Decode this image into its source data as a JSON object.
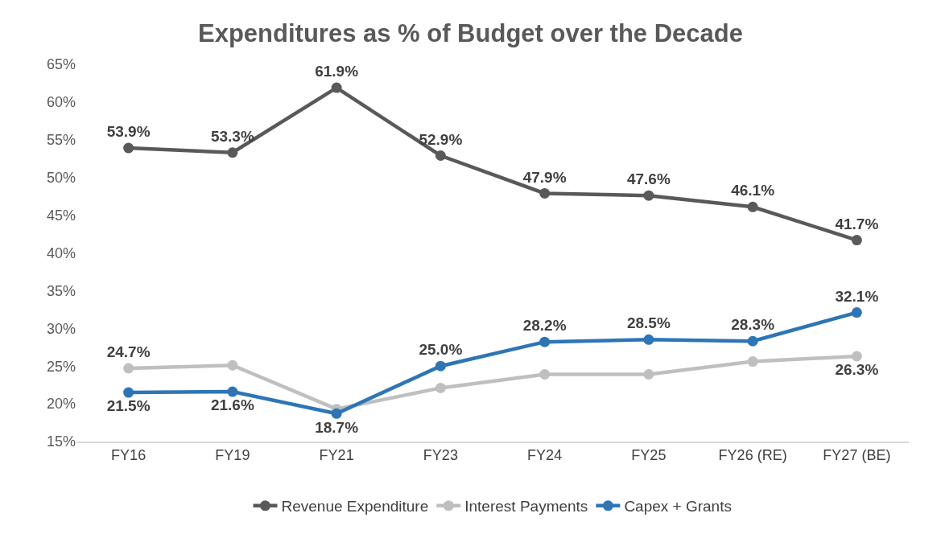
{
  "chart_data": {
    "type": "line",
    "title": "Expenditures as % of Budget over the Decade",
    "categories": [
      "FY16",
      "FY19",
      "FY21",
      "FY23",
      "FY24",
      "FY25",
      "FY26 (RE)",
      "FY27 (BE)"
    ],
    "series": [
      {
        "name": "Revenue Expenditure",
        "color": "#595959",
        "values": [
          53.9,
          53.3,
          61.9,
          52.9,
          47.9,
          47.6,
          46.1,
          41.7
        ],
        "value_labels": [
          "53.9%",
          "53.3%",
          "61.9%",
          "52.9%",
          "47.9%",
          "47.6%",
          "46.1%",
          "41.7%"
        ]
      },
      {
        "name": "Interest Payments",
        "color": "#bfbfbf",
        "values": [
          24.7,
          25.1,
          19.3,
          22.1,
          23.9,
          23.9,
          25.6,
          26.3
        ],
        "value_labels": [
          "24.7%",
          null,
          null,
          null,
          null,
          null,
          null,
          "26.3%"
        ]
      },
      {
        "name": "Capex + Grants",
        "color": "#2e75b6",
        "values": [
          21.5,
          21.6,
          18.7,
          25.0,
          28.2,
          28.5,
          28.3,
          32.1
        ],
        "value_labels": [
          "21.5%",
          "21.6%",
          "18.7%",
          "25.0%",
          "28.2%",
          "28.5%",
          "28.3%",
          "32.1%"
        ]
      }
    ],
    "ylim": [
      15,
      65
    ],
    "yticks": [
      {
        "value": 15,
        "label": "15%"
      },
      {
        "value": 20,
        "label": "20%"
      },
      {
        "value": 25,
        "label": "25%"
      },
      {
        "value": 30,
        "label": "30%"
      },
      {
        "value": 35,
        "label": "35%"
      },
      {
        "value": 40,
        "label": "40%"
      },
      {
        "value": 45,
        "label": "45%"
      },
      {
        "value": 50,
        "label": "50%"
      },
      {
        "value": 55,
        "label": "55%"
      },
      {
        "value": 60,
        "label": "60%"
      },
      {
        "value": 65,
        "label": "65%"
      }
    ],
    "grid": false,
    "legend": "bottom",
    "marker": "circle",
    "line_style": "solid"
  }
}
